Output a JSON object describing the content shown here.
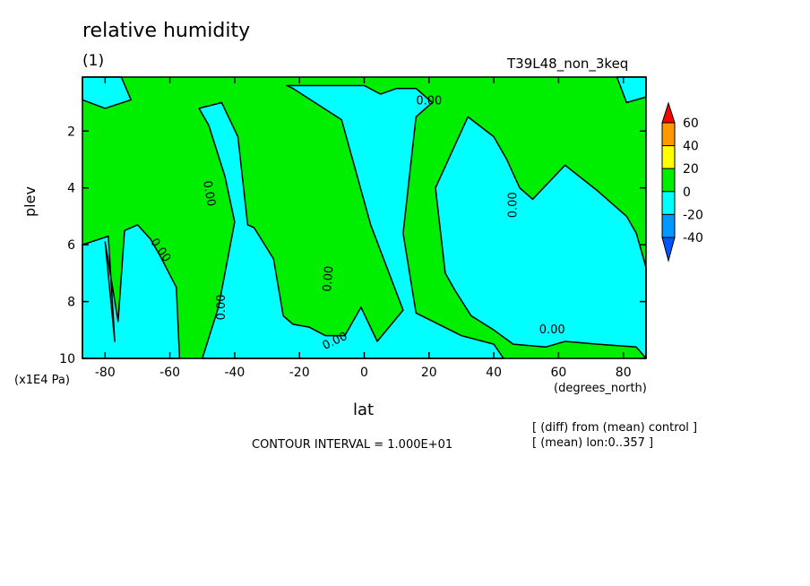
{
  "chart_data": {
    "type": "heatmap",
    "title": "relative humidity",
    "subtitle": "(1)",
    "case_label": "T39L48_non_3keq",
    "xlabel": "lat",
    "xunit": "(degrees_north)",
    "ylabel": "plev",
    "yunit": "(x1E4 Pa)",
    "xlim": [
      -87,
      87
    ],
    "ylim": [
      10,
      0.1
    ],
    "x_ticks": [
      -80,
      -60,
      -40,
      -20,
      0,
      20,
      40,
      60,
      80
    ],
    "y_ticks": [
      2,
      4,
      6,
      8,
      10
    ],
    "contour_interval_text": "CONTOUR INTERVAL = 1.000E+01",
    "notes": [
      "[ (diff) from (mean) control ]",
      "[ (mean) lon:0..357 ]"
    ],
    "contour_labels": [
      "0.00",
      "0.00",
      "0.00",
      "0.00",
      "0.00",
      "0.00",
      "0.00",
      "0.00"
    ],
    "colorbar": {
      "levels": [
        60,
        40,
        20,
        0,
        -20,
        -40
      ],
      "colors": [
        "#ff0000",
        "#ff9900",
        "#ffff00",
        "#00ee00",
        "#00ffff",
        "#0099ff",
        "#0055ff"
      ]
    },
    "regions": [
      {
        "sign": "negative",
        "name": "",
        "polygon": [
          [
            -87,
            0.1
          ],
          [
            -75,
            0.1
          ],
          [
            -72,
            0.9
          ],
          [
            -80,
            1.2
          ],
          [
            -87,
            0.9
          ]
        ]
      },
      {
        "sign": "negative",
        "name": "",
        "polygon": [
          [
            -87,
            6.0
          ],
          [
            -79,
            5.7
          ],
          [
            -77,
            9.4
          ],
          [
            -80,
            5.9
          ],
          [
            -76,
            8.7
          ],
          [
            -74,
            5.5
          ],
          [
            -70,
            5.3
          ],
          [
            -66,
            5.8
          ],
          [
            -63,
            6.4
          ],
          [
            -58,
            7.5
          ],
          [
            -57,
            10
          ],
          [
            -87,
            10
          ]
        ]
      },
      {
        "sign": "negative",
        "name": "",
        "polygon": [
          [
            -51,
            1.2
          ],
          [
            -44,
            1.0
          ],
          [
            -39,
            2.2
          ],
          [
            -36,
            5.3
          ],
          [
            -34,
            5.4
          ],
          [
            -28,
            6.5
          ],
          [
            -25,
            8.5
          ],
          [
            -22,
            8.8
          ],
          [
            -17,
            8.9
          ],
          [
            -12,
            9.2
          ],
          [
            -6,
            9.2
          ],
          [
            -1,
            8.2
          ],
          [
            4,
            9.4
          ],
          [
            12,
            8.3
          ],
          [
            2,
            5.3
          ],
          [
            -7,
            1.6
          ],
          [
            -22,
            0.5
          ],
          [
            -24,
            0.4
          ],
          [
            0,
            0.4
          ],
          [
            5,
            0.7
          ],
          [
            10,
            0.5
          ],
          [
            16,
            0.5
          ],
          [
            21,
            1.0
          ],
          [
            16,
            1.5
          ],
          [
            12,
            5.6
          ],
          [
            16,
            8.4
          ],
          [
            30,
            9.2
          ],
          [
            40,
            9.5
          ],
          [
            43,
            10
          ],
          [
            -50,
            10
          ],
          [
            -45,
            8.2
          ],
          [
            -40,
            5.2
          ],
          [
            -43,
            3.6
          ],
          [
            -48,
            1.8
          ]
        ]
      },
      {
        "sign": "negative",
        "name": "",
        "polygon": [
          [
            32,
            1.5
          ],
          [
            40,
            2.2
          ],
          [
            44,
            3.0
          ],
          [
            48,
            4.0
          ],
          [
            52,
            4.4
          ],
          [
            62,
            3.2
          ],
          [
            72,
            4.1
          ],
          [
            81,
            5.0
          ],
          [
            84,
            5.6
          ],
          [
            87,
            6.8
          ],
          [
            87,
            10
          ],
          [
            84,
            9.6
          ],
          [
            72,
            9.5
          ],
          [
            62,
            9.4
          ],
          [
            56,
            9.6
          ],
          [
            46,
            9.5
          ],
          [
            40,
            9.0
          ],
          [
            33,
            8.5
          ],
          [
            28,
            7.6
          ],
          [
            25,
            7.0
          ],
          [
            22,
            4.0
          ]
        ]
      },
      {
        "sign": "negative",
        "name": "",
        "polygon": [
          [
            78,
            0.1
          ],
          [
            87,
            0.1
          ],
          [
            87,
            0.8
          ],
          [
            81,
            1.0
          ]
        ]
      }
    ]
  }
}
